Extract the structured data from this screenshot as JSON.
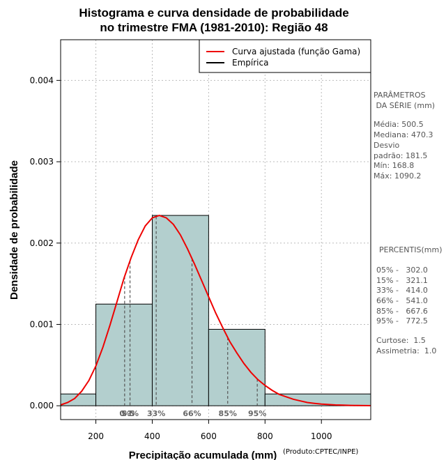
{
  "chart_data": {
    "type": "histogram",
    "title": [
      "Histograma e curva densidade de probabilidade",
      "no trimestre FMA (1981-2010): Região 48"
    ],
    "xlabel": "Precipitação acumulada (mm)",
    "ylabel": "Densidade de probabilidade",
    "credit": "(Produto:CPTEC/INPE)",
    "xlim": [
      75,
      1175
    ],
    "ylim": [
      -0.00017,
      0.0045
    ],
    "xticks": [
      200,
      400,
      600,
      800,
      1000
    ],
    "yticks": [
      0.0,
      0.001,
      0.002,
      0.003,
      0.004
    ],
    "ytick_labels": [
      "0.000",
      "0.001",
      "0.002",
      "0.003",
      "0.004"
    ],
    "grid": true,
    "legend": {
      "position": "top-right",
      "entries": [
        {
          "label": "Curva ajustada (função Gama)",
          "color": "#ee0000"
        },
        {
          "label": "Empírica",
          "color": "#000000"
        }
      ]
    },
    "histogram": {
      "color": "#b3cfce",
      "bins": [
        {
          "start": 75,
          "end": 200,
          "density": 0.000145
        },
        {
          "start": 200,
          "end": 400,
          "density": 0.00125
        },
        {
          "start": 400,
          "end": 600,
          "density": 0.00234
        },
        {
          "start": 600,
          "end": 800,
          "density": 0.00094
        },
        {
          "start": 800,
          "end": 1175,
          "density": 0.000145
        }
      ]
    },
    "fitted_curve": {
      "name": "Curva ajustada (função Gama)",
      "color": "#ee0000",
      "x": [
        75,
        100,
        125,
        150,
        175,
        200,
        225,
        250,
        275,
        300,
        325,
        350,
        375,
        400,
        425,
        450,
        475,
        500,
        525,
        550,
        575,
        600,
        625,
        650,
        675,
        700,
        725,
        750,
        775,
        800,
        825,
        850,
        875,
        900,
        925,
        950,
        975,
        1000,
        1025,
        1050,
        1075,
        1100,
        1125,
        1150,
        1175
      ],
      "y": [
        1e-05,
        4e-05,
        9e-05,
        0.00018,
        0.00031,
        0.00049,
        0.00072,
        0.00099,
        0.00128,
        0.00157,
        0.00182,
        0.00204,
        0.00221,
        0.00231,
        0.00234,
        0.00231,
        0.00223,
        0.0021,
        0.00193,
        0.00174,
        0.00154,
        0.00134,
        0.00114,
        0.00096,
        0.00079,
        0.00065,
        0.00052,
        0.00041,
        0.00032,
        0.00025,
        0.00019,
        0.00014,
        0.00011,
        8e-05,
        6e-05,
        4e-05,
        3e-05,
        2e-05,
        1.5e-05,
        1e-05,
        7e-06,
        5e-06,
        3e-06,
        2e-06,
        1e-06
      ]
    },
    "percentiles": [
      {
        "label": "05%",
        "value": 302.0
      },
      {
        "label": "15%",
        "value": 321.1
      },
      {
        "label": "33%",
        "value": 414.0
      },
      {
        "label": "66%",
        "value": 541.0
      },
      {
        "label": "85%",
        "value": 667.6
      },
      {
        "label": "95%",
        "value": 772.5
      }
    ],
    "percentile_marks_label": "05%15%",
    "series_parameters": {
      "heading": [
        "PARÂMETROS",
        " DA SÉRIE (mm)"
      ],
      "lines": [
        "Média:  500.5",
        "Mediana:  470.3",
        "Desvio",
        "padrão:  181.5",
        "Mín:  168.8",
        "Máx:  1090.2"
      ]
    },
    "percentile_table": {
      "heading": "PERCENTIS(mm)",
      "lines": [
        "05% -   302.0",
        "15% -   321.1",
        "33% -   414.0",
        "66% -   541.0",
        "85% -   667.6",
        "95% -   772.5"
      ]
    },
    "moments": {
      "lines": [
        "Curtose:  1.5",
        "Assimetria:  1.0"
      ]
    }
  }
}
